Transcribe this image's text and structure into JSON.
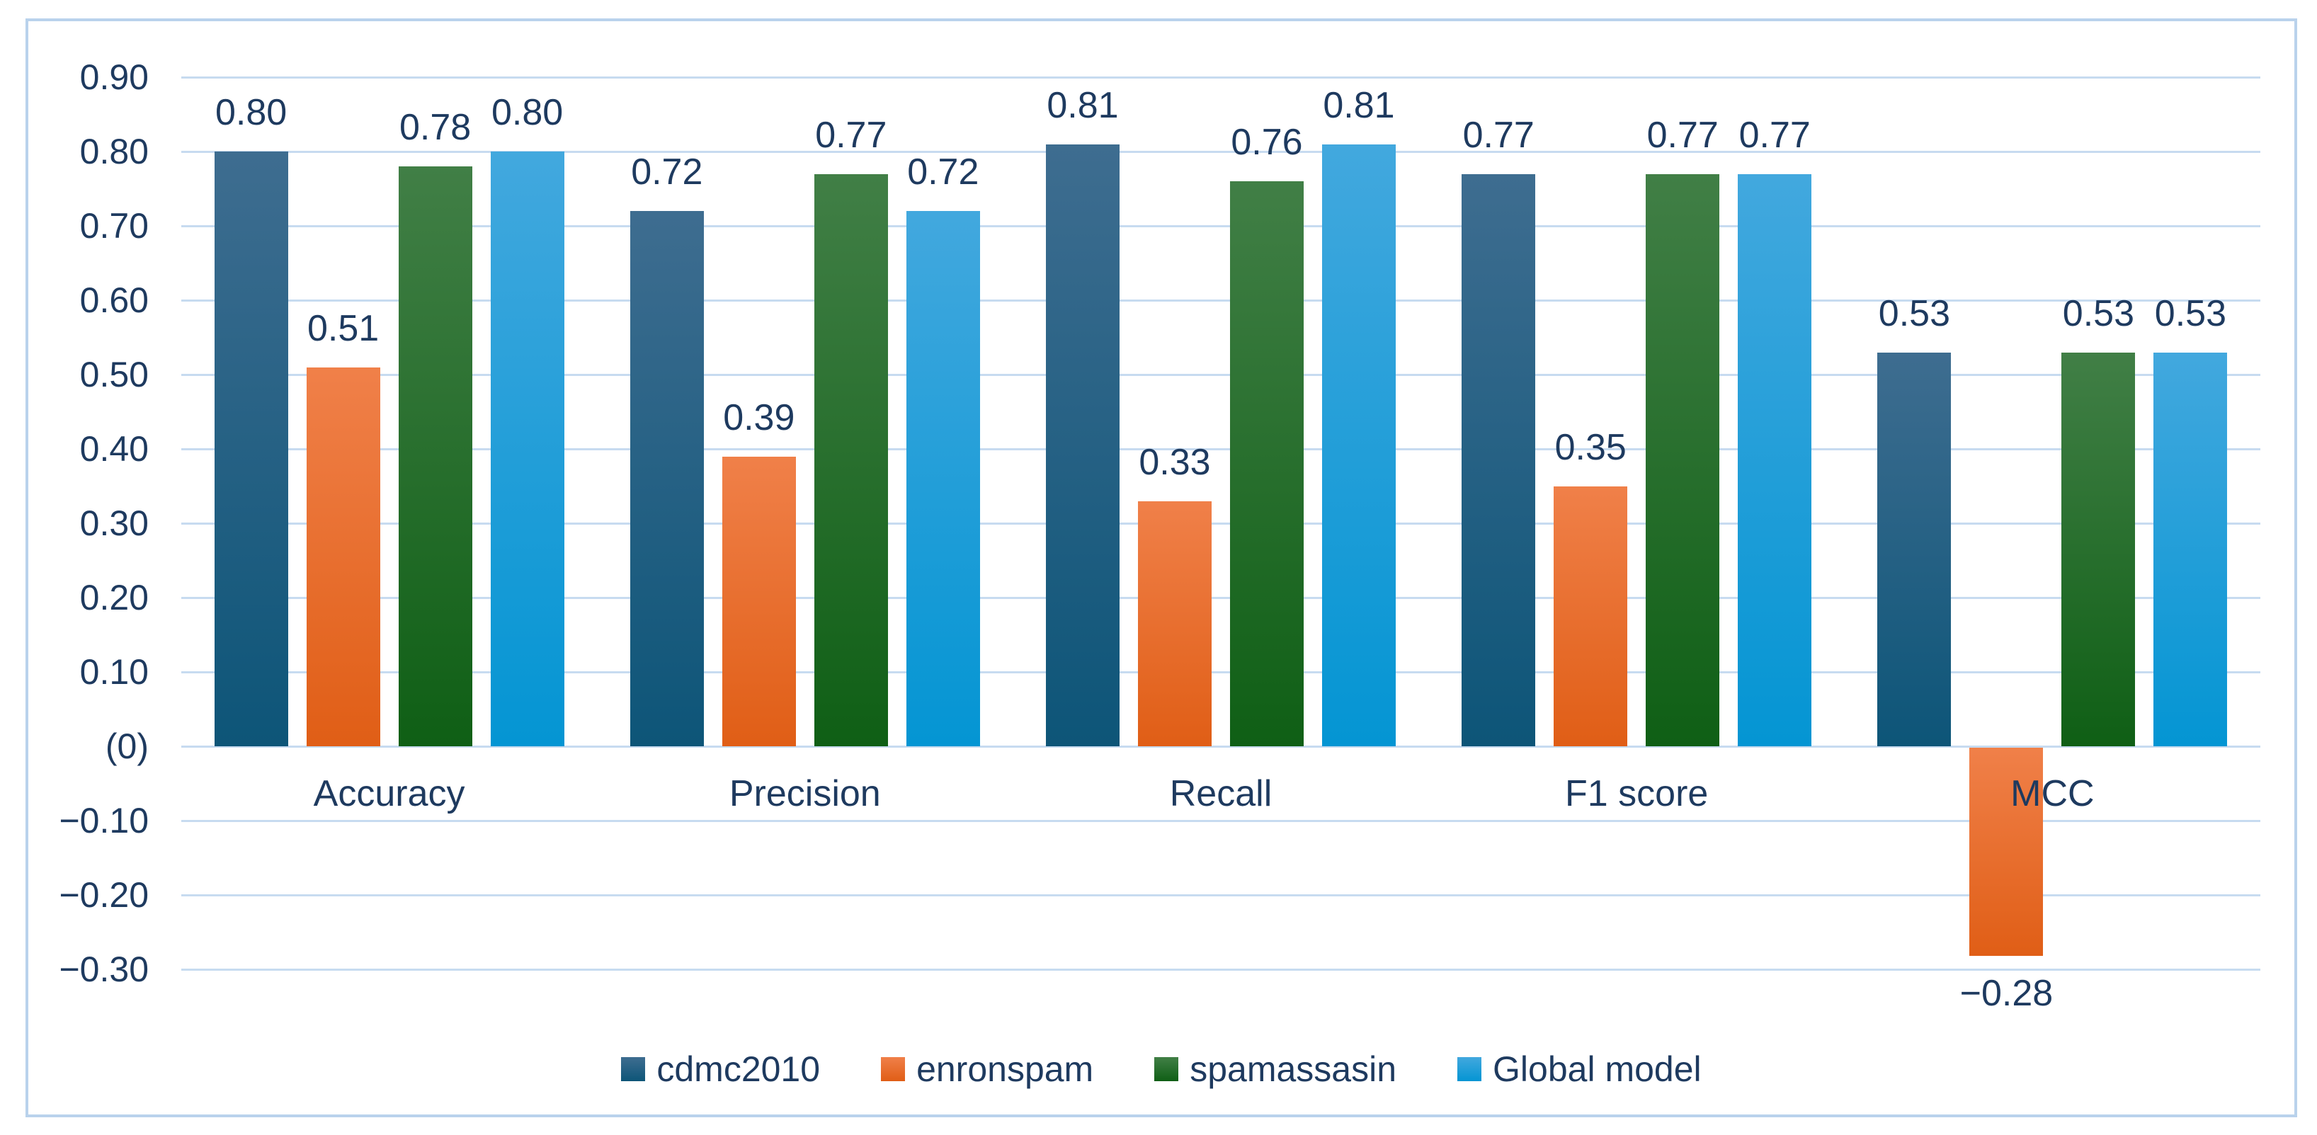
{
  "chart_data": {
    "type": "bar",
    "title": "",
    "categories": [
      "Accuracy",
      "Precision",
      "Recall",
      "F1 score",
      "MCC"
    ],
    "series": [
      {
        "name": "cdmc2010",
        "color_top": "#3E6D90",
        "color_bottom": "#0D5578",
        "values": [
          0.8,
          0.72,
          0.81,
          0.77,
          0.53
        ],
        "labels": [
          "0.80",
          "0.72",
          "0.81",
          "0.77",
          "0.53"
        ]
      },
      {
        "name": "enronspam",
        "color_top": "#F08049",
        "color_bottom": "#E05E16",
        "values": [
          0.51,
          0.39,
          0.33,
          0.35,
          -0.28
        ],
        "labels": [
          "0.51",
          "0.39",
          "0.33",
          "0.35",
          "−0.28"
        ]
      },
      {
        "name": "spamassasin",
        "color_top": "#417F46",
        "color_bottom": "#0F5F15",
        "values": [
          0.78,
          0.77,
          0.76,
          0.77,
          0.53
        ],
        "labels": [
          "0.78",
          "0.77",
          "0.76",
          "0.77",
          "0.53"
        ]
      },
      {
        "name": "Global model",
        "color_top": "#42A8DE",
        "color_bottom": "#0495D3",
        "values": [
          0.8,
          0.72,
          0.81,
          0.77,
          0.53
        ],
        "labels": [
          "0.80",
          "0.72",
          "0.81",
          "0.77",
          "0.53"
        ]
      }
    ],
    "yaxis": {
      "min": -0.3,
      "max": 0.9,
      "step": 0.1,
      "ticks": [
        {
          "v": 0.9,
          "label": "0.90"
        },
        {
          "v": 0.8,
          "label": "0.80"
        },
        {
          "v": 0.7,
          "label": "0.70"
        },
        {
          "v": 0.6,
          "label": "0.60"
        },
        {
          "v": 0.5,
          "label": "0.50"
        },
        {
          "v": 0.4,
          "label": "0.40"
        },
        {
          "v": 0.3,
          "label": "0.30"
        },
        {
          "v": 0.2,
          "label": "0.20"
        },
        {
          "v": 0.1,
          "label": "0.10"
        },
        {
          "v": 0.0,
          "label": "(0)"
        },
        {
          "v": -0.1,
          "label": "−0.10"
        },
        {
          "v": -0.2,
          "label": "−0.20"
        },
        {
          "v": -0.3,
          "label": "−0.30"
        }
      ]
    },
    "grid": true,
    "legend_position": "bottom",
    "xlabel": "",
    "ylabel": "",
    "colors": {
      "text": "#1E3A5F",
      "gridline": "#C7DBF0",
      "frame_border": "#B9D2EC",
      "background": "#FFFFFF"
    }
  }
}
